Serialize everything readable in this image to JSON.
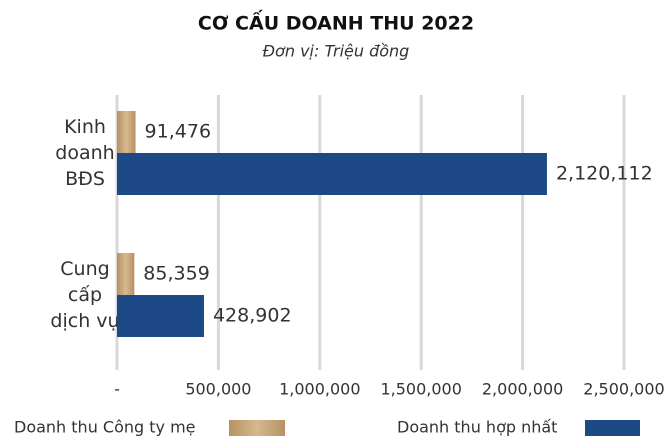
{
  "chart_data": {
    "type": "hbar",
    "title": "CƠ CẤU DOANH THU 2022",
    "subtitle": "Đơn vị: Triệu đồng",
    "categories": [
      "Kinh\ndoanh\nBĐS",
      "Cung\ncấp\ndịch vụ"
    ],
    "series": [
      {
        "name": "Doanh thu Công ty mẹ",
        "color": "#c4a276",
        "values": [
          91476,
          85359
        ],
        "value_labels": [
          "91,476",
          "85,359"
        ]
      },
      {
        "name": "Doanh thu hợp nhất",
        "color": "#1d4a86",
        "values": [
          2120112,
          428902
        ],
        "value_labels": [
          "2,120,112",
          "428,902"
        ]
      }
    ],
    "xlim": [
      0,
      2500000
    ],
    "xticks": [
      {
        "value": 0,
        "label": "-"
      },
      {
        "value": 500000,
        "label": "500,000"
      },
      {
        "value": 1000000,
        "label": "1,000,000"
      },
      {
        "value": 1500000,
        "label": "1,500,000"
      },
      {
        "value": 2000000,
        "label": "2,000,000"
      },
      {
        "value": 2500000,
        "label": "2,500,000"
      }
    ],
    "grid": true,
    "legend": "bottom"
  }
}
